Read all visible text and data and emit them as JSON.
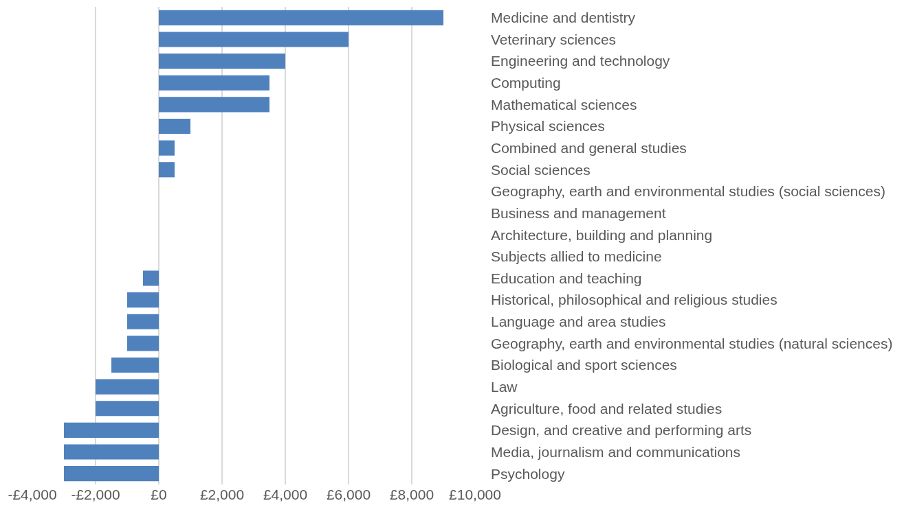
{
  "chart_data": {
    "type": "bar",
    "orientation": "horizontal",
    "categories": [
      "Medicine and dentistry",
      "Veterinary sciences",
      "Engineering and technology",
      "Computing",
      "Mathematical sciences",
      "Physical sciences",
      "Combined and general studies",
      "Social sciences",
      "Geography, earth and environmental studies (social sciences)",
      "Business and management",
      "Architecture, building and planning",
      "Subjects allied to medicine",
      "Education and teaching",
      "Historical, philosophical and religious studies",
      "Language and area studies",
      "Geography, earth and environmental studies (natural sciences)",
      "Biological and sport sciences",
      "Law",
      "Agriculture, food and related studies",
      "Design, and creative and performing arts",
      "Media, journalism and communications",
      "Psychology"
    ],
    "values": [
      9000,
      6000,
      4000,
      3500,
      3500,
      1000,
      500,
      500,
      0,
      0,
      0,
      0,
      -500,
      -1000,
      -1000,
      -1000,
      -1500,
      -2000,
      -2000,
      -3000,
      -3000,
      -3000
    ],
    "color": "#4f81bd",
    "xlim": [
      -4000,
      10000
    ],
    "xticks": [
      {
        "value": -4000,
        "label": "-£4,000"
      },
      {
        "value": -2000,
        "label": "-£2,000"
      },
      {
        "value": 0,
        "label": "£0"
      },
      {
        "value": 2000,
        "label": "£2,000"
      },
      {
        "value": 4000,
        "label": "£4,000"
      },
      {
        "value": 6000,
        "label": "£6,000"
      },
      {
        "value": 8000,
        "label": "£8,000"
      },
      {
        "value": 10000,
        "label": "£10,000"
      }
    ],
    "grid": "x"
  }
}
